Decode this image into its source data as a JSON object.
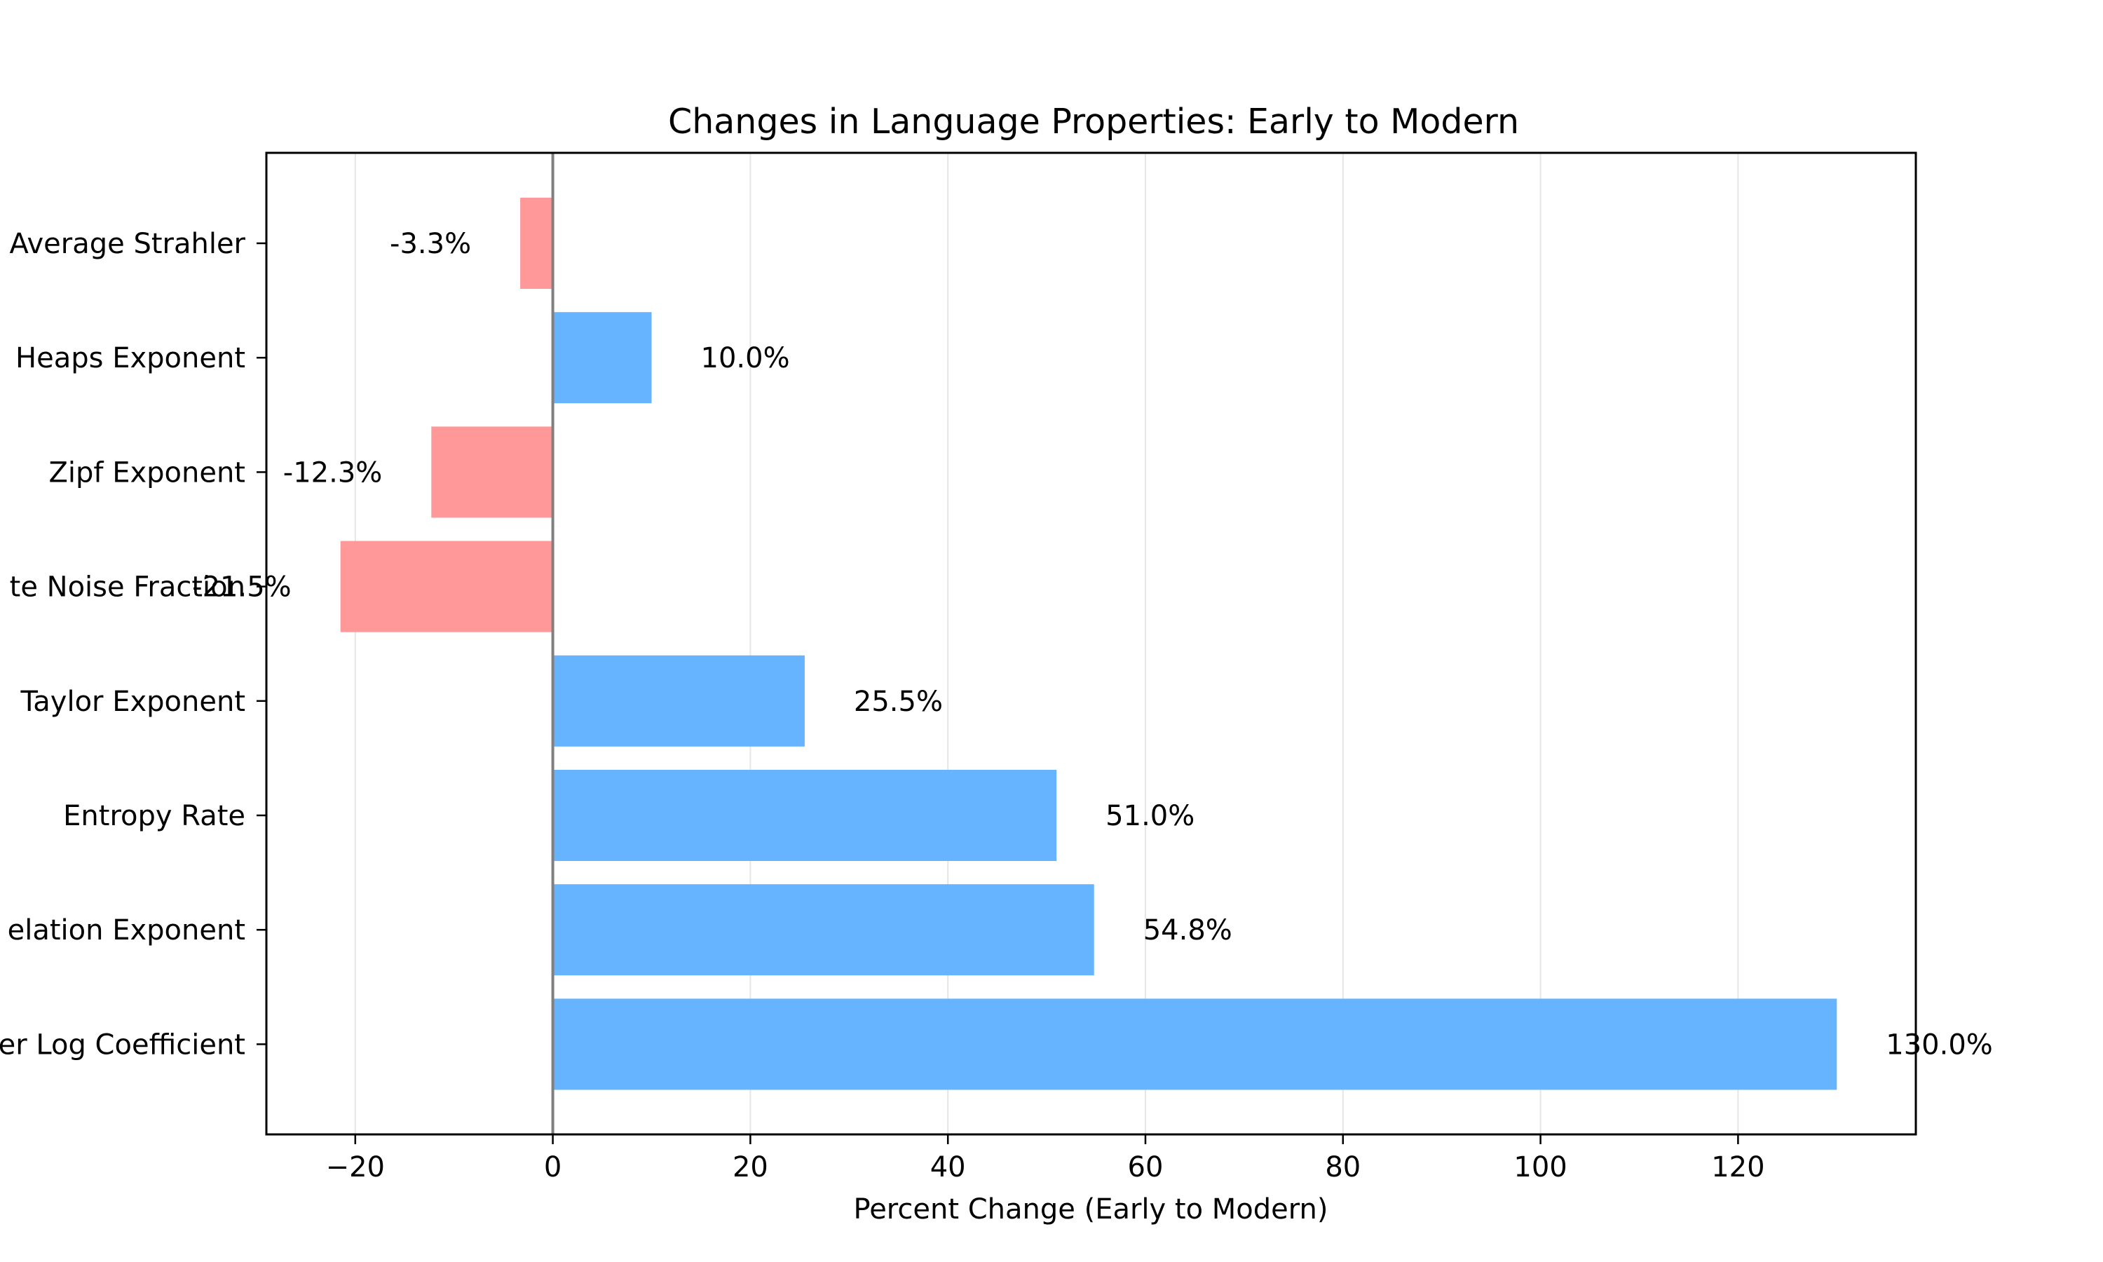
{
  "chart_data": {
    "type": "bar",
    "orientation": "horizontal",
    "title": "Changes in Language Properties: Early to Modern",
    "xlabel": "Percent Change (Early to Modern)",
    "ylabel": "",
    "xlim": [
      -29,
      138
    ],
    "x_ticks": [
      -20,
      0,
      20,
      40,
      60,
      80,
      100,
      120
    ],
    "x_tick_labels": [
      "−20",
      "0",
      "20",
      "40",
      "60",
      "80",
      "100",
      "120"
    ],
    "grid": "vertical",
    "categories": [
      "Average Strahler",
      "Heaps Exponent",
      "Zipf Exponent",
      "te Noise Fraction",
      "Taylor Exponent",
      "Entropy Rate",
      "elation Exponent",
      "er Log Coefficient"
    ],
    "values": [
      -3.3,
      10.0,
      -12.3,
      -21.5,
      25.5,
      51.0,
      54.8,
      130.0
    ],
    "value_labels": [
      "-3.3%",
      "10.0%",
      "-12.3%",
      "-21.5%",
      "25.5%",
      "51.0%",
      "54.8%",
      "130.0%"
    ],
    "colors": {
      "positive": "#66b3ff",
      "negative": "#ff9999",
      "zero_line": "#808080",
      "grid": "#e6e6e6",
      "frame": "#000000"
    }
  }
}
